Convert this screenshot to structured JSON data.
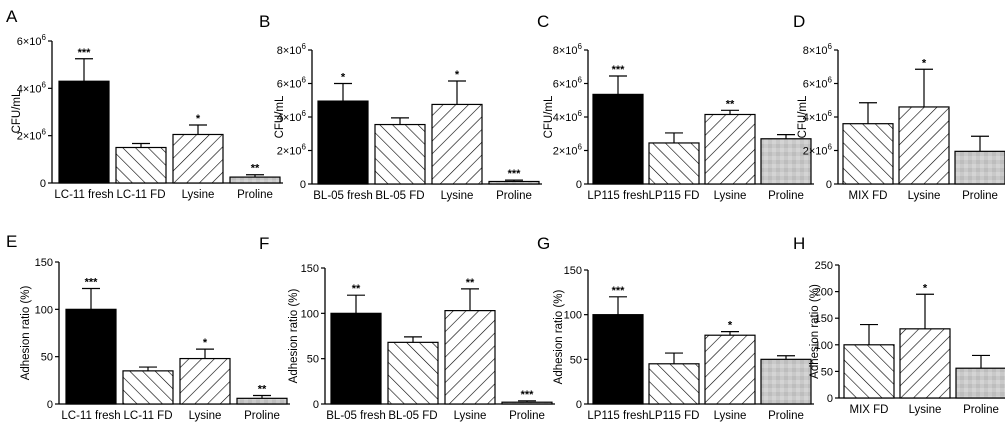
{
  "colors": {
    "solid_bar": "#000000",
    "hatched_bar": "#ffffff",
    "dotted_bar": "#c9c9c9",
    "axis": "#000000"
  },
  "chart_data": [
    {
      "panel": "A",
      "type": "bar",
      "ylabel": "CFU/mL",
      "categories": [
        "LC-11 fresh",
        "LC-11 FD",
        "Lysine",
        "Proline"
      ],
      "values": [
        4300000,
        1500000,
        2050000,
        250000
      ],
      "errors": [
        950000,
        170000,
        400000,
        100000
      ],
      "significance": [
        "***",
        "",
        "*",
        "**"
      ],
      "patterns": [
        "solid",
        "hatch-left",
        "hatch-right",
        "dotted"
      ],
      "ylim": [
        0,
        6000000
      ],
      "ticks": [
        {
          "v": 0,
          "base": "0",
          "exp": ""
        },
        {
          "v": 2000000,
          "base": "2×10",
          "exp": "6"
        },
        {
          "v": 4000000,
          "base": "4×10",
          "exp": "6"
        },
        {
          "v": 6000000,
          "base": "6×10",
          "exp": "6"
        }
      ]
    },
    {
      "panel": "B",
      "type": "bar",
      "ylabel": "CFU/mL",
      "categories": [
        "BL-05 fresh",
        "BL-05 FD",
        "Lysine",
        "Proline"
      ],
      "values": [
        4950000,
        3550000,
        4750000,
        150000
      ],
      "errors": [
        1050000,
        400000,
        1400000,
        80000
      ],
      "significance": [
        "*",
        "",
        "*",
        "***"
      ],
      "patterns": [
        "solid",
        "hatch-left",
        "hatch-right",
        "dotted"
      ],
      "ylim": [
        0,
        8000000
      ],
      "ticks": [
        {
          "v": 0,
          "base": "0",
          "exp": ""
        },
        {
          "v": 2000000,
          "base": "2×10",
          "exp": "6"
        },
        {
          "v": 4000000,
          "base": "4×10",
          "exp": "6"
        },
        {
          "v": 6000000,
          "base": "6×10",
          "exp": "6"
        },
        {
          "v": 8000000,
          "base": "8×10",
          "exp": "6"
        }
      ]
    },
    {
      "panel": "C",
      "type": "bar",
      "ylabel": "CFU/mL",
      "categories": [
        "LP115 fresh",
        "LP115 FD",
        "Lysine",
        "Proline"
      ],
      "values": [
        5350000,
        2450000,
        4150000,
        2700000
      ],
      "errors": [
        1100000,
        600000,
        250000,
        250000
      ],
      "significance": [
        "***",
        "",
        "**",
        ""
      ],
      "patterns": [
        "solid",
        "hatch-left",
        "hatch-right",
        "dotted"
      ],
      "ylim": [
        0,
        8000000
      ],
      "ticks": [
        {
          "v": 0,
          "base": "0",
          "exp": ""
        },
        {
          "v": 2000000,
          "base": "2×10",
          "exp": "6"
        },
        {
          "v": 4000000,
          "base": "4×10",
          "exp": "6"
        },
        {
          "v": 6000000,
          "base": "6×10",
          "exp": "6"
        },
        {
          "v": 8000000,
          "base": "8×10",
          "exp": "6"
        }
      ]
    },
    {
      "panel": "D",
      "type": "bar",
      "ylabel": "CFU/mL",
      "categories": [
        "MIX FD",
        "Lysine",
        "Proline"
      ],
      "values": [
        3600000,
        4600000,
        1950000
      ],
      "errors": [
        1250000,
        2250000,
        900000
      ],
      "significance": [
        "",
        "*",
        ""
      ],
      "patterns": [
        "hatch-left",
        "hatch-right",
        "dotted"
      ],
      "ylim": [
        0,
        8000000
      ],
      "ticks": [
        {
          "v": 0,
          "base": "0",
          "exp": ""
        },
        {
          "v": 2000000,
          "base": "2×10",
          "exp": "6"
        },
        {
          "v": 4000000,
          "base": "4×10",
          "exp": "6"
        },
        {
          "v": 6000000,
          "base": "6×10",
          "exp": "6"
        },
        {
          "v": 8000000,
          "base": "8×10",
          "exp": "6"
        }
      ]
    },
    {
      "panel": "E",
      "type": "bar",
      "ylabel": "Adhesion ratio (%)",
      "categories": [
        "LC-11 fresh",
        "LC-11 FD",
        "Lysine",
        "Proline"
      ],
      "values": [
        100,
        35,
        48,
        6
      ],
      "errors": [
        22,
        4,
        10,
        3
      ],
      "significance": [
        "***",
        "",
        "*",
        "**"
      ],
      "patterns": [
        "solid",
        "hatch-left",
        "hatch-right",
        "dotted"
      ],
      "ylim": [
        0,
        150
      ],
      "ticks": [
        {
          "v": 0,
          "base": "0",
          "exp": ""
        },
        {
          "v": 50,
          "base": "50",
          "exp": ""
        },
        {
          "v": 100,
          "base": "100",
          "exp": ""
        },
        {
          "v": 150,
          "base": "150",
          "exp": ""
        }
      ]
    },
    {
      "panel": "F",
      "type": "bar",
      "ylabel": "Adhesion ratio (%)",
      "categories": [
        "BL-05 fresh",
        "BL-05 FD",
        "Lysine",
        "Proline"
      ],
      "values": [
        100,
        68,
        103,
        2
      ],
      "errors": [
        20,
        6,
        24,
        1.5
      ],
      "significance": [
        "**",
        "",
        "**",
        "***"
      ],
      "patterns": [
        "solid",
        "hatch-left",
        "hatch-right",
        "dotted"
      ],
      "ylim": [
        0,
        150
      ],
      "ticks": [
        {
          "v": 0,
          "base": "0",
          "exp": ""
        },
        {
          "v": 50,
          "base": "50",
          "exp": ""
        },
        {
          "v": 100,
          "base": "100",
          "exp": ""
        },
        {
          "v": 150,
          "base": "150",
          "exp": ""
        }
      ]
    },
    {
      "panel": "G",
      "type": "bar",
      "ylabel": "Adhesion ratio (%)",
      "categories": [
        "LP115 fresh",
        "LP115 FD",
        "Lysine",
        "Proline"
      ],
      "values": [
        100,
        45,
        77,
        50
      ],
      "errors": [
        20,
        12,
        4,
        4
      ],
      "significance": [
        "***",
        "",
        "*",
        ""
      ],
      "patterns": [
        "solid",
        "hatch-left",
        "hatch-right",
        "dotted"
      ],
      "ylim": [
        0,
        150
      ],
      "ticks": [
        {
          "v": 0,
          "base": "0",
          "exp": ""
        },
        {
          "v": 50,
          "base": "50",
          "exp": ""
        },
        {
          "v": 100,
          "base": "100",
          "exp": ""
        },
        {
          "v": 150,
          "base": "150",
          "exp": ""
        }
      ]
    },
    {
      "panel": "H",
      "type": "bar",
      "ylabel": "Adhesion ratio (%)",
      "categories": [
        "MIX FD",
        "Lysine",
        "Proline"
      ],
      "values": [
        100,
        130,
        56
      ],
      "errors": [
        38,
        65,
        24
      ],
      "significance": [
        "",
        "*",
        ""
      ],
      "patterns": [
        "hatch-left",
        "hatch-right",
        "dotted"
      ],
      "ylim": [
        0,
        250
      ],
      "ticks": [
        {
          "v": 0,
          "base": "0",
          "exp": ""
        },
        {
          "v": 50,
          "base": "50",
          "exp": ""
        },
        {
          "v": 100,
          "base": "100",
          "exp": ""
        },
        {
          "v": 150,
          "base": "150",
          "exp": ""
        },
        {
          "v": 200,
          "base": "200",
          "exp": ""
        },
        {
          "v": 250,
          "base": "250",
          "exp": ""
        }
      ]
    }
  ]
}
